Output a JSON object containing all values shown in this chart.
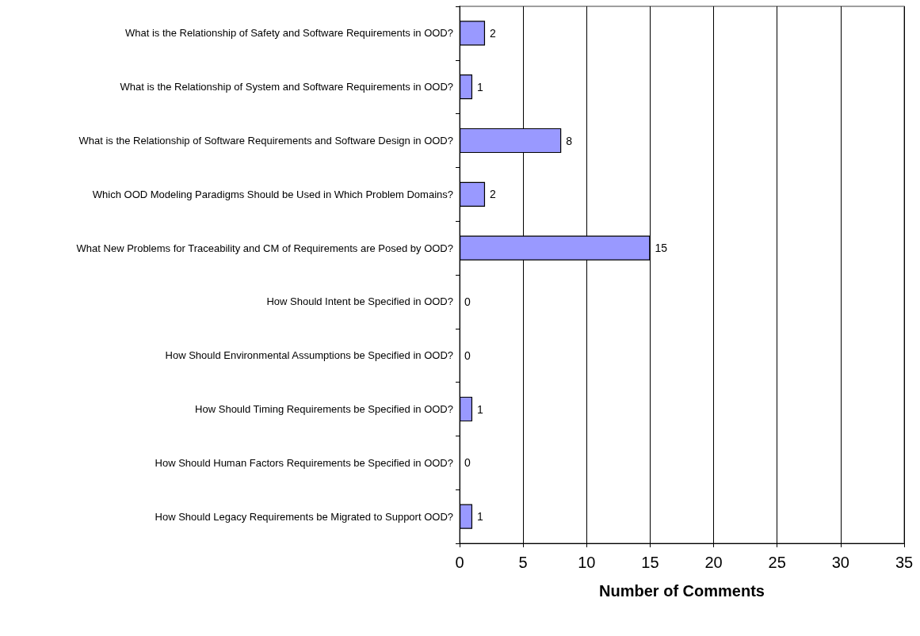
{
  "chart_data": {
    "type": "bar",
    "orientation": "horizontal",
    "xlabel": "Number of Comments",
    "categories": [
      "What is the Relationship of Safety and Software Requirements in OOD?",
      "What is the Relationship of System and Software Requirements in OOD?",
      "What is the Relationship of Software Requirements and Software Design in OOD?",
      "Which OOD Modeling Paradigms Should be Used in Which Problem Domains?",
      "What New Problems for Traceability and CM of Requirements are Posed by OOD?",
      "How Should Intent be Specified in OOD?",
      "How Should Environmental Assumptions be Specified in OOD?",
      "How Should Timing Requirements be Specified in OOD?",
      "How Should Human Factors Requirements be Specified in OOD?",
      "How Should Legacy Requirements be Migrated to Support OOD?"
    ],
    "values": [
      2,
      1,
      8,
      2,
      15,
      0,
      0,
      1,
      0,
      1
    ],
    "color": "#9999ff",
    "xlim": [
      0,
      35
    ],
    "xticks": [
      0,
      5,
      10,
      15,
      20,
      25,
      30,
      35
    ],
    "grid": "x",
    "data_labels": true
  }
}
